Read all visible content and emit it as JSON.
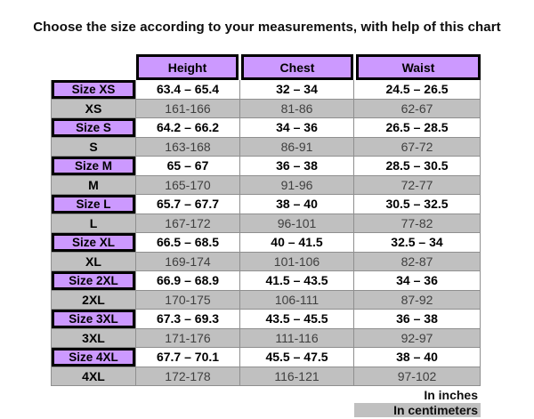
{
  "title": "Choose the size according to your measurements, with help of this chart",
  "header": {
    "columns": [
      "Height",
      "Chest",
      "Waist"
    ]
  },
  "rows": [
    {
      "label": "Size XS",
      "height": "63.4 – 65.4",
      "chest": "32 – 34",
      "waist": "24.5 – 26.5",
      "unit": "inches"
    },
    {
      "label": "XS",
      "height": "161-166",
      "chest": "81-86",
      "waist": "62-67",
      "unit": "centimeters"
    },
    {
      "label": "Size S",
      "height": "64.2 – 66.2",
      "chest": "34 – 36",
      "waist": "26.5 – 28.5",
      "unit": "inches"
    },
    {
      "label": "S",
      "height": "163-168",
      "chest": "86-91",
      "waist": "67-72",
      "unit": "centimeters"
    },
    {
      "label": "Size M",
      "height": "65 – 67",
      "chest": "36 – 38",
      "waist": "28.5 – 30.5",
      "unit": "inches"
    },
    {
      "label": "M",
      "height": "165-170",
      "chest": "91-96",
      "waist": "72-77",
      "unit": "centimeters"
    },
    {
      "label": "Size L",
      "height": "65.7 – 67.7",
      "chest": "38 – 40",
      "waist": "30.5 – 32.5",
      "unit": "inches"
    },
    {
      "label": "L",
      "height": "167-172",
      "chest": "96-101",
      "waist": "77-82",
      "unit": "centimeters"
    },
    {
      "label": "Size XL",
      "height": "66.5 – 68.5",
      "chest": "40 – 41.5",
      "waist": "32.5 – 34",
      "unit": "inches"
    },
    {
      "label": "XL",
      "height": "169-174",
      "chest": "101-106",
      "waist": "82-87",
      "unit": "centimeters"
    },
    {
      "label": "Size 2XL",
      "height": "66.9 – 68.9",
      "chest": "41.5 – 43.5",
      "waist": "34 – 36",
      "unit": "inches"
    },
    {
      "label": "2XL",
      "height": "170-175",
      "chest": "106-111",
      "waist": "87-92",
      "unit": "centimeters"
    },
    {
      "label": "Size 3XL",
      "height": "67.3 – 69.3",
      "chest": "43.5 – 45.5",
      "waist": "36 – 38",
      "unit": "inches"
    },
    {
      "label": "3XL",
      "height": "171-176",
      "chest": "111-116",
      "waist": "92-97",
      "unit": "centimeters"
    },
    {
      "label": "Size 4XL",
      "height": "67.7 – 70.1",
      "chest": "45.5 – 47.5",
      "waist": "38 – 40",
      "unit": "inches"
    },
    {
      "label": "4XL",
      "height": "172-178",
      "chest": "116-121",
      "waist": "97-102",
      "unit": "centimeters"
    }
  ],
  "legend": {
    "inches_label": "In inches",
    "centimeters_label": "In centimeters"
  },
  "colors": {
    "header_fill": "#CC99FF",
    "size_label_fill": "#CC99FF",
    "cm_row_fill": "#C0C0C0",
    "border": "#000000",
    "grid_line": "#8F8F8F",
    "cm_text": "#3F3F3F"
  },
  "chart_data": {
    "type": "table",
    "title": "Choose the size according to your measurements, with help of this chart",
    "columns": [
      "Size",
      "Height",
      "Chest",
      "Waist"
    ],
    "legend": [
      "In inches",
      "In centimeters"
    ],
    "sizes": [
      {
        "size": "XS",
        "height_in": [
          63.4,
          65.4
        ],
        "chest_in": [
          32,
          34
        ],
        "waist_in": [
          24.5,
          26.5
        ],
        "height_cm": [
          161,
          166
        ],
        "chest_cm": [
          81,
          86
        ],
        "waist_cm": [
          62,
          67
        ]
      },
      {
        "size": "S",
        "height_in": [
          64.2,
          66.2
        ],
        "chest_in": [
          34,
          36
        ],
        "waist_in": [
          26.5,
          28.5
        ],
        "height_cm": [
          163,
          168
        ],
        "chest_cm": [
          86,
          91
        ],
        "waist_cm": [
          67,
          72
        ]
      },
      {
        "size": "M",
        "height_in": [
          65,
          67
        ],
        "chest_in": [
          36,
          38
        ],
        "waist_in": [
          28.5,
          30.5
        ],
        "height_cm": [
          165,
          170
        ],
        "chest_cm": [
          91,
          96
        ],
        "waist_cm": [
          72,
          77
        ]
      },
      {
        "size": "L",
        "height_in": [
          65.7,
          67.7
        ],
        "chest_in": [
          38,
          40
        ],
        "waist_in": [
          30.5,
          32.5
        ],
        "height_cm": [
          167,
          172
        ],
        "chest_cm": [
          96,
          101
        ],
        "waist_cm": [
          77,
          82
        ]
      },
      {
        "size": "XL",
        "height_in": [
          66.5,
          68.5
        ],
        "chest_in": [
          40,
          41.5
        ],
        "waist_in": [
          32.5,
          34
        ],
        "height_cm": [
          169,
          174
        ],
        "chest_cm": [
          101,
          106
        ],
        "waist_cm": [
          82,
          87
        ]
      },
      {
        "size": "2XL",
        "height_in": [
          66.9,
          68.9
        ],
        "chest_in": [
          41.5,
          43.5
        ],
        "waist_in": [
          34,
          36
        ],
        "height_cm": [
          170,
          175
        ],
        "chest_cm": [
          106,
          111
        ],
        "waist_cm": [
          87,
          92
        ]
      },
      {
        "size": "3XL",
        "height_in": [
          67.3,
          69.3
        ],
        "chest_in": [
          43.5,
          45.5
        ],
        "waist_in": [
          36,
          38
        ],
        "height_cm": [
          171,
          176
        ],
        "chest_cm": [
          111,
          116
        ],
        "waist_cm": [
          92,
          97
        ]
      },
      {
        "size": "4XL",
        "height_in": [
          67.7,
          70.1
        ],
        "chest_in": [
          45.5,
          47.5
        ],
        "waist_in": [
          38,
          40
        ],
        "height_cm": [
          172,
          178
        ],
        "chest_cm": [
          116,
          121
        ],
        "waist_cm": [
          97,
          102
        ]
      }
    ]
  }
}
